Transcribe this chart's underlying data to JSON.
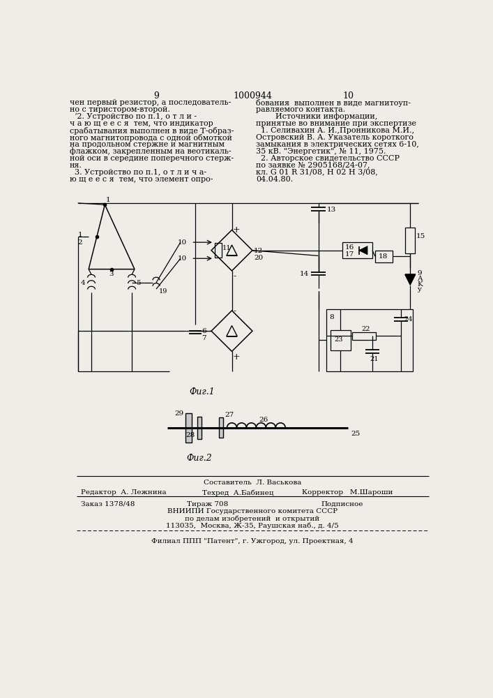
{
  "bg_color": "#f0ede8",
  "page_num_left": "9",
  "page_center": "1000944",
  "page_num_right": "10",
  "left_column_lines": [
    "чен первый резистор, а последователь-",
    "но с тиристором-второй.",
    "  ʼ2. Устройство по п.1, о т л и -",
    "ч а ю щ е е с я  тем, что индикатор",
    "срабатывания выполнен в виде Т-образ-",
    "ного магнитопровода с одной обмоткой",
    "на продольном стержне и магнитным",
    "флажком, закрепленным на веотикаль-",
    "ной оси в середине поперечного стерж-",
    "ня.",
    "  3. Устройство по п.1, о т л и ч а-",
    "ю щ е е с я  тем, что элемент опро-"
  ],
  "right_column_lines": [
    "бования  выполнен в виде магнитоуп-",
    "равляемого контакта.",
    "        Источники информации,",
    "принятые во внимание при экспертизе",
    "  1. Селивахин А. И.,Пронникова М.И.,",
    "Островский В. А. Указатель короткого",
    "замыкания в электрических сетях 6-10,",
    "35 кВ. \"Энергетик\", № 11, 1975.",
    "  2. Авторское свидетельство СССР",
    "по заявке № 2905168/24-07,",
    "кл. G 01 R 31/08, H 02 H 3/08,",
    "04.04.80."
  ],
  "fig1_caption": "Фиг.1",
  "fig2_caption": "Фиг.2",
  "bottom_composer_header": "Составитель  Л. Васькова",
  "bottom_editor": "Редактор  А. Лежнина",
  "bottom_tech": "Техред  А.Бабинец",
  "bottom_corrector": "Корректор   М.Шароши",
  "bottom_order": "Заказ 1378/48",
  "bottom_tirazh": "Тираж 708",
  "bottom_podpisnoe": "Подписное",
  "bottom_org1": "ВНИИПИ Государственного комитета СССР",
  "bottom_org2": "по делам изобретений  и открытий",
  "bottom_addr": "113035,  Москва, Ж-35, Раушская наб., д. 4/5",
  "bottom_filial": "Филиал ППП \"Патент\", г. Ужгород, ул. Проектная, 4"
}
